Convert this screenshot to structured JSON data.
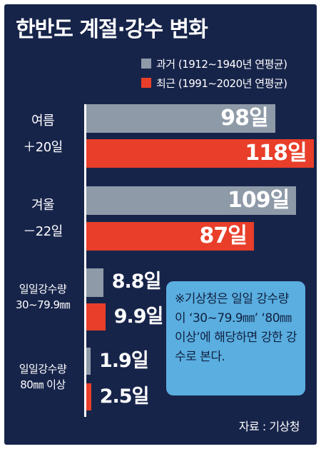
{
  "title": "한반도 계절·강수 변화",
  "legend": [
    {
      "label": "과거 (1912∼1940년 연평균)",
      "color": "#8e9aa8"
    },
    {
      "label": "최근 (1991∼2020년 연평균)",
      "color": "#e83e2a"
    }
  ],
  "groups": [
    {
      "line1": "여름",
      "line2": "＋20일"
    },
    {
      "line1": "겨울",
      "line2": "－22일"
    },
    {
      "line1": "일일강수량",
      "line2": "30∼79.9㎜"
    },
    {
      "line1": "일일강수량",
      "line2": "80㎜ 이상"
    }
  ],
  "chart_data": {
    "type": "bar",
    "orientation": "horizontal",
    "title": "한반도 계절·강수 변화",
    "categories": [
      "여름 ＋20일",
      "겨울 －22일",
      "일일강수량 30∼79.9㎜",
      "일일강수량 80㎜ 이상"
    ],
    "series": [
      {
        "name": "과거 (1912∼1940년 연평균)",
        "values": [
          98,
          109,
          8.8,
          1.9
        ],
        "labels": [
          "98일",
          "109일",
          "8.8일",
          "1.9일"
        ],
        "color": "#8e9aa8"
      },
      {
        "name": "최근 (1991∼2020년 연평균)",
        "values": [
          118,
          87,
          9.9,
          2.5
        ],
        "labels": [
          "118일",
          "87일",
          "9.9일",
          "2.5일"
        ],
        "color": "#e83e2a"
      }
    ]
  },
  "note": "※기상청은 일일 강수량이 ‘30∼79.9㎜’ ‘80㎜ 이상’에 해당하면 강한 강수로 본다.",
  "source": "자료 : 기상청"
}
